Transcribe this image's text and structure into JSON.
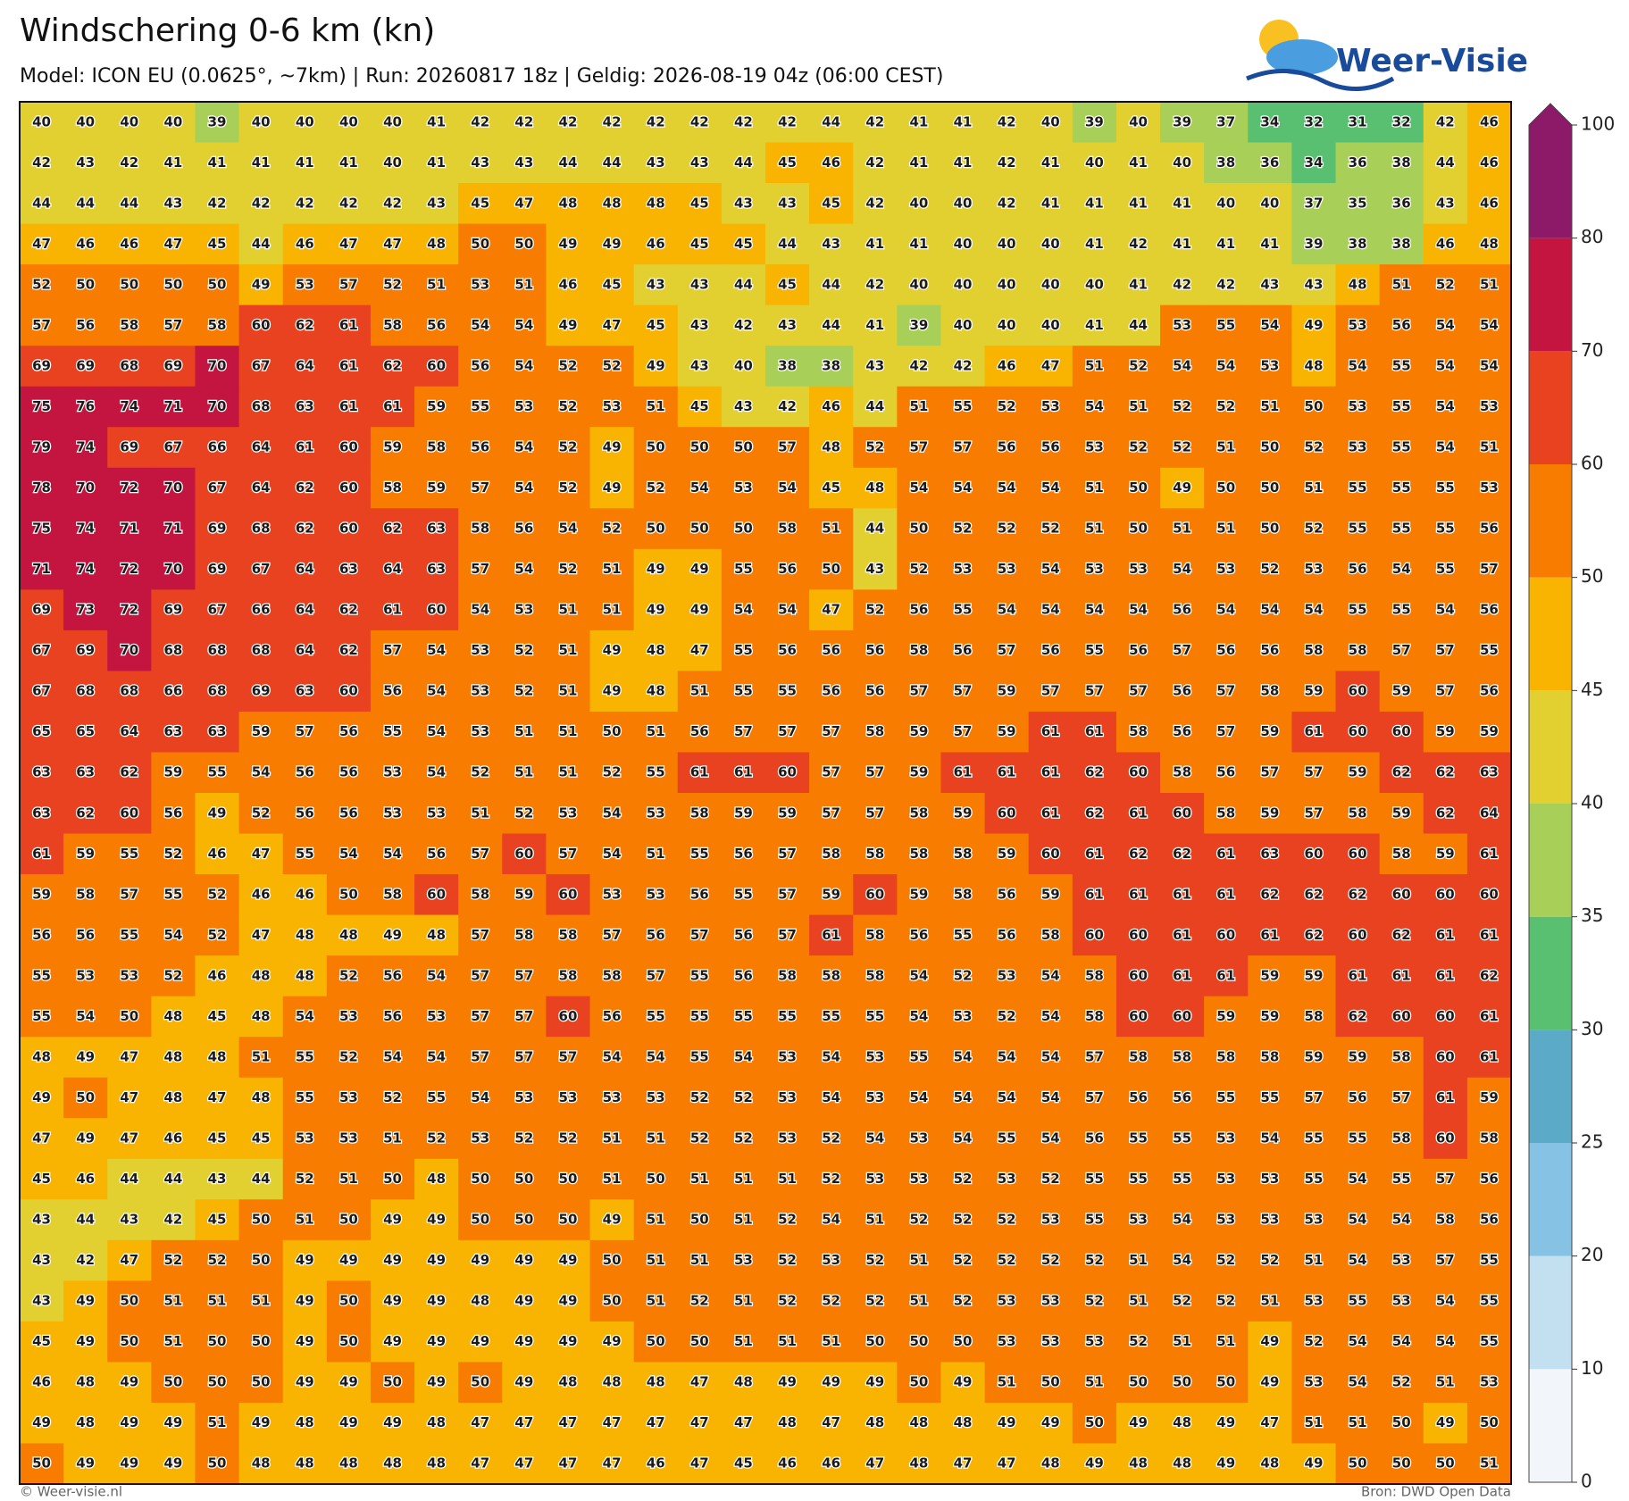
{
  "header": {
    "title": "Windschering 0-6 km (kn)",
    "subtitle": "Model: ICON EU (0.0625°, ~7km)  |  Run: 20260817 18z  |  Geldig: 2026-08-19 04z (06:00 CEST)"
  },
  "logo": "Weer-Visie",
  "grid": {
    "rows": [
      [
        40,
        40,
        40,
        40,
        39,
        40,
        40,
        40,
        40,
        41,
        42,
        42,
        42,
        42,
        42,
        42,
        42,
        42,
        44,
        42,
        41,
        41,
        42,
        40,
        39,
        40,
        39,
        37,
        34,
        32,
        31,
        32,
        42,
        46
      ],
      [
        42,
        43,
        42,
        41,
        41,
        41,
        41,
        41,
        40,
        41,
        43,
        43,
        44,
        44,
        43,
        43,
        44,
        45,
        46,
        42,
        41,
        41,
        42,
        41,
        40,
        41,
        40,
        38,
        36,
        34,
        36,
        38,
        44,
        46
      ],
      [
        44,
        44,
        44,
        43,
        42,
        42,
        42,
        42,
        42,
        43,
        45,
        47,
        48,
        48,
        48,
        45,
        43,
        43,
        45,
        42,
        40,
        40,
        42,
        41,
        41,
        41,
        41,
        40,
        40,
        37,
        35,
        36,
        43,
        46
      ],
      [
        47,
        46,
        46,
        47,
        45,
        44,
        46,
        47,
        47,
        48,
        50,
        50,
        49,
        49,
        46,
        45,
        45,
        44,
        43,
        41,
        41,
        40,
        40,
        40,
        41,
        42,
        41,
        41,
        41,
        39,
        38,
        38,
        46,
        48
      ],
      [
        52,
        50,
        50,
        50,
        50,
        49,
        53,
        57,
        52,
        51,
        53,
        51,
        46,
        45,
        43,
        43,
        44,
        45,
        44,
        42,
        40,
        40,
        40,
        40,
        40,
        41,
        42,
        42,
        43,
        43,
        48,
        51,
        52,
        51
      ],
      [
        57,
        56,
        58,
        57,
        58,
        60,
        62,
        61,
        58,
        56,
        54,
        54,
        49,
        47,
        45,
        43,
        42,
        43,
        44,
        41,
        39,
        40,
        40,
        40,
        41,
        44,
        53,
        55,
        54,
        49,
        53,
        56,
        54,
        54
      ],
      [
        69,
        69,
        68,
        69,
        70,
        67,
        64,
        61,
        62,
        60,
        56,
        54,
        52,
        52,
        49,
        43,
        40,
        38,
        38,
        43,
        42,
        42,
        46,
        47,
        51,
        52,
        54,
        54,
        53,
        48,
        54,
        55,
        54,
        54
      ],
      [
        75,
        76,
        74,
        71,
        70,
        68,
        63,
        61,
        61,
        59,
        55,
        53,
        52,
        53,
        51,
        45,
        43,
        42,
        46,
        44,
        51,
        55,
        52,
        53,
        54,
        51,
        52,
        52,
        51,
        50,
        53,
        55,
        54,
        53
      ],
      [
        79,
        74,
        69,
        67,
        66,
        64,
        61,
        60,
        59,
        58,
        56,
        54,
        52,
        49,
        50,
        50,
        50,
        57,
        48,
        52,
        57,
        57,
        56,
        56,
        53,
        52,
        52,
        51,
        50,
        52,
        53,
        55,
        54,
        51
      ],
      [
        78,
        70,
        72,
        70,
        67,
        64,
        62,
        60,
        58,
        59,
        57,
        54,
        52,
        49,
        52,
        54,
        53,
        54,
        45,
        48,
        54,
        54,
        54,
        54,
        51,
        50,
        49,
        50,
        50,
        51,
        55,
        55,
        55,
        53
      ],
      [
        75,
        74,
        71,
        71,
        69,
        68,
        62,
        60,
        62,
        63,
        58,
        56,
        54,
        52,
        50,
        50,
        50,
        58,
        51,
        44,
        50,
        52,
        52,
        52,
        51,
        50,
        51,
        51,
        50,
        52,
        55,
        55,
        55,
        56
      ],
      [
        71,
        74,
        72,
        70,
        69,
        67,
        64,
        63,
        64,
        63,
        57,
        54,
        52,
        51,
        49,
        49,
        55,
        56,
        50,
        43,
        52,
        53,
        53,
        54,
        53,
        53,
        54,
        53,
        52,
        53,
        56,
        54,
        55,
        57
      ],
      [
        69,
        73,
        72,
        69,
        67,
        66,
        64,
        62,
        61,
        60,
        54,
        53,
        51,
        51,
        49,
        49,
        54,
        54,
        47,
        52,
        56,
        55,
        54,
        54,
        54,
        54,
        56,
        54,
        54,
        54,
        55,
        55,
        54,
        56
      ],
      [
        67,
        69,
        70,
        68,
        68,
        68,
        64,
        62,
        57,
        54,
        53,
        52,
        51,
        49,
        48,
        47,
        55,
        56,
        56,
        56,
        58,
        56,
        57,
        56,
        55,
        56,
        57,
        56,
        56,
        58,
        58,
        57,
        57,
        55
      ],
      [
        67,
        68,
        68,
        66,
        68,
        69,
        63,
        60,
        56,
        54,
        53,
        52,
        51,
        49,
        48,
        51,
        55,
        55,
        56,
        56,
        57,
        57,
        59,
        57,
        57,
        57,
        56,
        57,
        58,
        59,
        60,
        59,
        57,
        56
      ],
      [
        65,
        65,
        64,
        63,
        63,
        59,
        57,
        56,
        55,
        54,
        53,
        51,
        51,
        50,
        51,
        56,
        57,
        57,
        57,
        58,
        59,
        57,
        59,
        61,
        61,
        58,
        56,
        57,
        59,
        61,
        60,
        60,
        59,
        59
      ],
      [
        63,
        63,
        62,
        59,
        55,
        54,
        56,
        56,
        53,
        54,
        52,
        51,
        51,
        52,
        55,
        61,
        61,
        60,
        57,
        57,
        59,
        61,
        61,
        61,
        62,
        60,
        58,
        56,
        57,
        57,
        59,
        62,
        62,
        63
      ],
      [
        63,
        62,
        60,
        56,
        49,
        52,
        56,
        56,
        53,
        53,
        51,
        52,
        53,
        54,
        53,
        58,
        59,
        59,
        57,
        57,
        58,
        59,
        60,
        61,
        62,
        61,
        60,
        58,
        59,
        57,
        58,
        59,
        62,
        64
      ],
      [
        61,
        59,
        55,
        52,
        46,
        47,
        55,
        54,
        54,
        56,
        57,
        60,
        57,
        54,
        51,
        55,
        56,
        57,
        58,
        58,
        58,
        58,
        59,
        60,
        61,
        62,
        62,
        61,
        63,
        60,
        60,
        58,
        59,
        61
      ],
      [
        59,
        58,
        57,
        55,
        52,
        46,
        46,
        50,
        58,
        60,
        58,
        59,
        60,
        53,
        53,
        56,
        55,
        57,
        59,
        60,
        59,
        58,
        56,
        59,
        61,
        61,
        61,
        61,
        62,
        62,
        62,
        60,
        60,
        60
      ],
      [
        56,
        56,
        55,
        54,
        52,
        47,
        48,
        48,
        49,
        48,
        57,
        58,
        58,
        57,
        56,
        57,
        56,
        57,
        61,
        58,
        56,
        55,
        56,
        58,
        60,
        60,
        61,
        60,
        61,
        62,
        60,
        62,
        61,
        61
      ],
      [
        55,
        53,
        53,
        52,
        46,
        48,
        48,
        52,
        56,
        54,
        57,
        57,
        58,
        58,
        57,
        55,
        56,
        58,
        58,
        58,
        54,
        52,
        53,
        54,
        58,
        60,
        61,
        61,
        59,
        59,
        61,
        61,
        61,
        62
      ],
      [
        55,
        54,
        50,
        48,
        45,
        48,
        54,
        53,
        56,
        53,
        57,
        57,
        60,
        56,
        55,
        55,
        55,
        55,
        55,
        55,
        54,
        53,
        52,
        54,
        58,
        60,
        60,
        59,
        59,
        58,
        62,
        60,
        60,
        61
      ],
      [
        48,
        49,
        47,
        48,
        48,
        51,
        55,
        52,
        54,
        54,
        57,
        57,
        57,
        54,
        54,
        55,
        54,
        53,
        54,
        53,
        55,
        54,
        54,
        54,
        57,
        58,
        58,
        58,
        58,
        59,
        59,
        58,
        60,
        61
      ],
      [
        49,
        50,
        47,
        48,
        47,
        48,
        55,
        53,
        52,
        55,
        54,
        53,
        53,
        53,
        53,
        52,
        52,
        53,
        54,
        53,
        54,
        54,
        54,
        54,
        57,
        56,
        56,
        55,
        55,
        57,
        56,
        57,
        61,
        59
      ],
      [
        47,
        49,
        47,
        46,
        45,
        45,
        53,
        53,
        51,
        52,
        53,
        52,
        52,
        51,
        51,
        52,
        52,
        53,
        52,
        54,
        53,
        54,
        55,
        54,
        56,
        55,
        55,
        53,
        54,
        55,
        55,
        58,
        60,
        58
      ],
      [
        45,
        46,
        44,
        44,
        43,
        44,
        52,
        51,
        50,
        48,
        50,
        50,
        50,
        51,
        50,
        51,
        51,
        51,
        52,
        53,
        53,
        52,
        53,
        52,
        55,
        55,
        55,
        53,
        53,
        55,
        54,
        55,
        57,
        56
      ],
      [
        43,
        44,
        43,
        42,
        45,
        50,
        51,
        50,
        49,
        49,
        50,
        50,
        50,
        49,
        51,
        50,
        51,
        52,
        54,
        51,
        52,
        52,
        52,
        53,
        55,
        53,
        54,
        53,
        53,
        53,
        54,
        54,
        58,
        56
      ],
      [
        43,
        42,
        47,
        52,
        52,
        50,
        49,
        49,
        49,
        49,
        49,
        49,
        49,
        50,
        51,
        51,
        53,
        52,
        53,
        52,
        51,
        52,
        52,
        52,
        52,
        51,
        54,
        52,
        52,
        51,
        54,
        53,
        57,
        55
      ],
      [
        43,
        49,
        50,
        51,
        51,
        51,
        49,
        50,
        49,
        49,
        48,
        49,
        49,
        50,
        51,
        52,
        51,
        52,
        52,
        52,
        51,
        52,
        53,
        53,
        52,
        51,
        52,
        52,
        51,
        53,
        55,
        53,
        54,
        55
      ],
      [
        45,
        49,
        50,
        51,
        50,
        50,
        49,
        50,
        49,
        49,
        49,
        49,
        49,
        49,
        50,
        50,
        51,
        51,
        51,
        50,
        50,
        50,
        53,
        53,
        53,
        52,
        51,
        51,
        49,
        52,
        54,
        54,
        54,
        55
      ],
      [
        46,
        48,
        49,
        50,
        50,
        50,
        49,
        49,
        50,
        49,
        50,
        49,
        48,
        48,
        48,
        47,
        48,
        49,
        49,
        49,
        50,
        49,
        51,
        50,
        51,
        50,
        50,
        50,
        49,
        53,
        54,
        52,
        51,
        53
      ],
      [
        49,
        48,
        49,
        49,
        51,
        49,
        48,
        49,
        49,
        48,
        47,
        47,
        47,
        47,
        47,
        47,
        47,
        48,
        47,
        48,
        48,
        48,
        49,
        49,
        50,
        49,
        48,
        49,
        47,
        51,
        51,
        50,
        49,
        50
      ],
      [
        50,
        49,
        49,
        49,
        50,
        48,
        48,
        48,
        48,
        48,
        47,
        47,
        47,
        47,
        46,
        47,
        45,
        46,
        46,
        47,
        48,
        47,
        47,
        48,
        49,
        48,
        48,
        49,
        48,
        49,
        50,
        50,
        50,
        51
      ]
    ]
  },
  "colorbar": {
    "ticks": [
      0,
      10,
      20,
      25,
      30,
      35,
      40,
      45,
      50,
      60,
      70,
      80,
      100
    ],
    "colors": [
      "#f2f6fa",
      "#c2e0f0",
      "#86c2e4",
      "#5aaac8",
      "#58c070",
      "#a8d058",
      "#e2d030",
      "#f8b400",
      "#f87c00",
      "#e84220",
      "#c41440",
      "#8c1a68"
    ]
  },
  "footer": {
    "left": "© Weer-visie.nl",
    "right": "Bron: DWD Open Data"
  }
}
